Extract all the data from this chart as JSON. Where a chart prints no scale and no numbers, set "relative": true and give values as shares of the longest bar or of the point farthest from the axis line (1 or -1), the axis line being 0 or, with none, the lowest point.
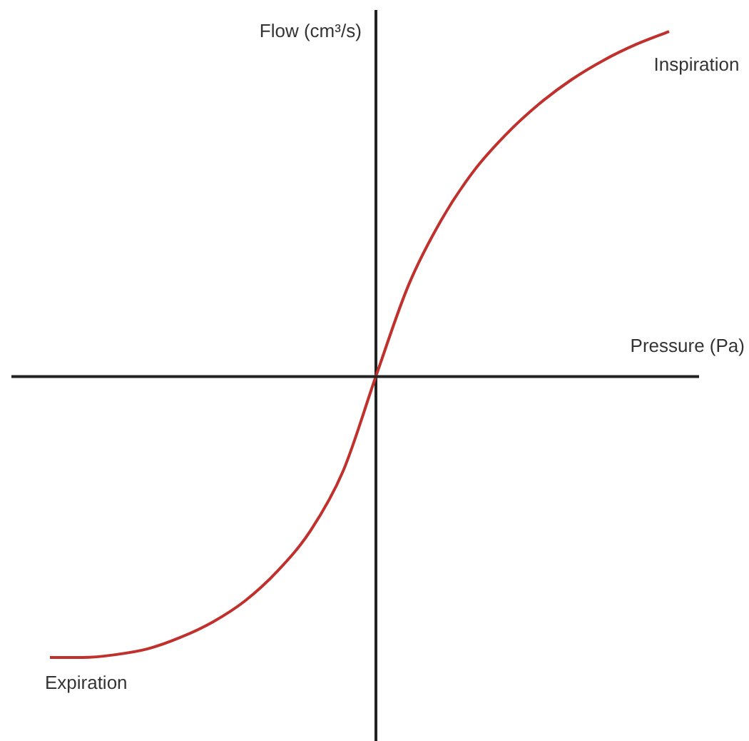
{
  "chart_data": {
    "type": "line",
    "relative": true,
    "xlabel": "Pressure (Pa)",
    "ylabel": "Flow (cm³/s)",
    "marker": "none",
    "categories": [
      null,
      null,
      null,
      null,
      null,
      null,
      null,
      null,
      null,
      null,
      null,
      null,
      null,
      null,
      null,
      null,
      null,
      null,
      null,
      null
    ],
    "series": [
      {
        "color": "#c0302c",
        "values": [
          -0.814,
          -0.814,
          -0.806,
          -0.789,
          -0.756,
          -0.711,
          -0.649,
          -0.562,
          -0.446,
          -0.273,
          0,
          0.264,
          0.452,
          0.595,
          0.702,
          0.789,
          0.86,
          0.917,
          0.963,
          1
        ]
      }
    ],
    "annotations": [
      "Inspiration",
      "Expiration"
    ]
  }
}
